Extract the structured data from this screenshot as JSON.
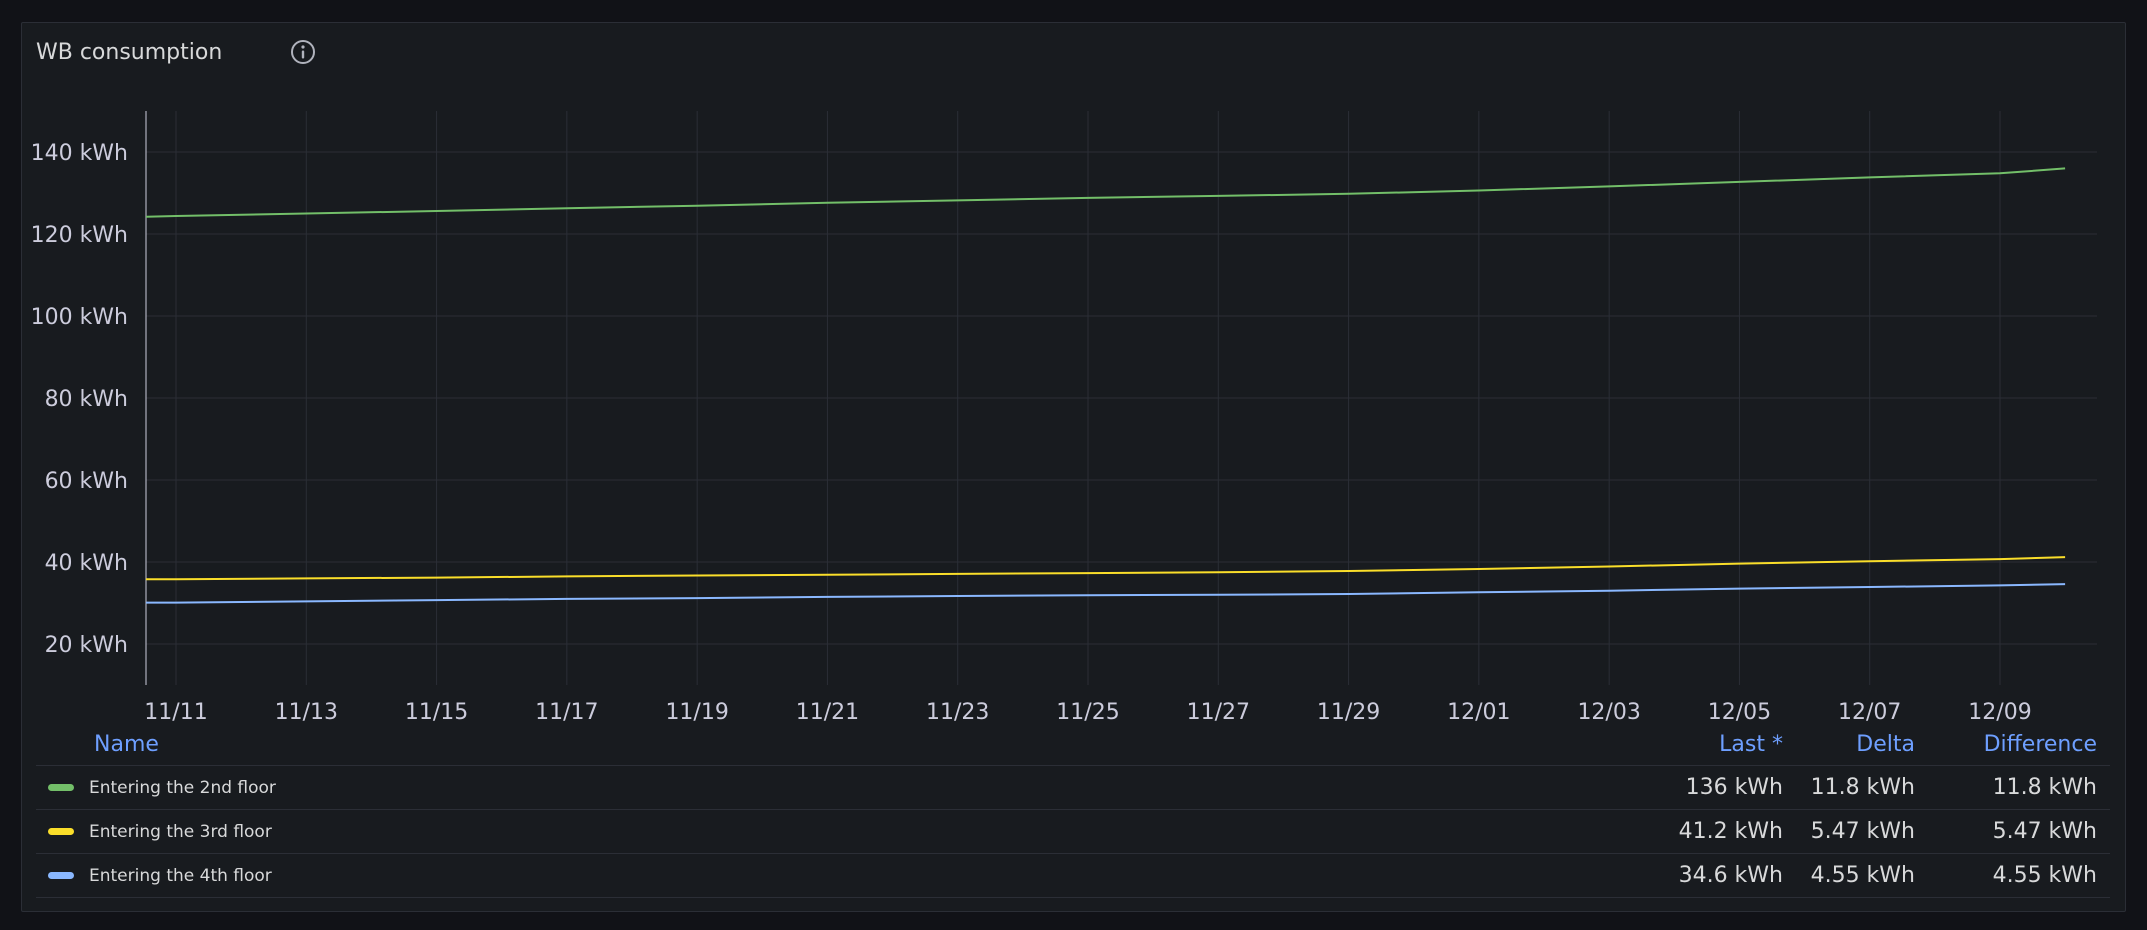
{
  "panel": {
    "title": "WB consumption"
  },
  "icons": {
    "info": "info-circle-icon"
  },
  "colors": {
    "background": "#111217",
    "panel_bg": "#181b1f",
    "grid": "#2b2e36",
    "axis_text": "#ccccdc",
    "legend_header": "#6e9fff"
  },
  "chart_data": {
    "type": "line",
    "title": "WB consumption",
    "xlabel": "",
    "ylabel": "",
    "x_tick_labels": [
      "11/11",
      "11/13",
      "11/15",
      "11/17",
      "11/19",
      "11/21",
      "11/23",
      "11/25",
      "11/27",
      "11/29",
      "12/01",
      "12/03",
      "12/05",
      "12/07",
      "12/09"
    ],
    "y_ticks": [
      20,
      40,
      60,
      80,
      100,
      120,
      140
    ],
    "y_tick_labels": [
      "20 kWh",
      "40 kWh",
      "60 kWh",
      "80 kWh",
      "100 kWh",
      "120 kWh",
      "140 kWh"
    ],
    "y_unit": "kWh",
    "xlim": [
      "11/10",
      "12/10"
    ],
    "ylim": [
      10,
      150
    ],
    "grid": true,
    "legend_position": "bottom",
    "x": [
      "11/10",
      "11/11",
      "11/13",
      "11/15",
      "11/17",
      "11/19",
      "11/21",
      "11/23",
      "11/25",
      "11/27",
      "11/29",
      "12/01",
      "12/03",
      "12/05",
      "12/07",
      "12/09",
      "12/10"
    ],
    "series": [
      {
        "name": "Entering the 2nd floor",
        "color": "#73bf69",
        "values": [
          124.2,
          124.4,
          125.0,
          125.6,
          126.3,
          126.9,
          127.6,
          128.2,
          128.8,
          129.3,
          129.8,
          130.6,
          131.6,
          132.7,
          133.8,
          134.8,
          136.0
        ]
      },
      {
        "name": "Entering the 3rd floor",
        "color": "#fade2a",
        "values": [
          35.8,
          35.8,
          36.0,
          36.2,
          36.5,
          36.7,
          36.9,
          37.1,
          37.3,
          37.5,
          37.8,
          38.3,
          38.9,
          39.6,
          40.2,
          40.7,
          41.2
        ]
      },
      {
        "name": "Entering the 4th floor",
        "color": "#8ab8ff",
        "values": [
          30.1,
          30.1,
          30.4,
          30.7,
          31.0,
          31.2,
          31.5,
          31.7,
          31.9,
          32.0,
          32.2,
          32.6,
          33.0,
          33.5,
          33.9,
          34.3,
          34.6
        ]
      }
    ]
  },
  "legend": {
    "columns": {
      "name": "Name",
      "last": "Last *",
      "delta": "Delta",
      "difference": "Difference"
    },
    "rows": [
      {
        "name": "Entering the 2nd floor",
        "color": "#73bf69",
        "last": "136 kWh",
        "delta": "11.8 kWh",
        "difference": "11.8 kWh"
      },
      {
        "name": "Entering the 3rd floor",
        "color": "#fade2a",
        "last": "41.2 kWh",
        "delta": "5.47 kWh",
        "difference": "5.47 kWh"
      },
      {
        "name": "Entering the 4th floor",
        "color": "#8ab8ff",
        "last": "34.6 kWh",
        "delta": "4.55 kWh",
        "difference": "4.55 kWh"
      }
    ]
  }
}
